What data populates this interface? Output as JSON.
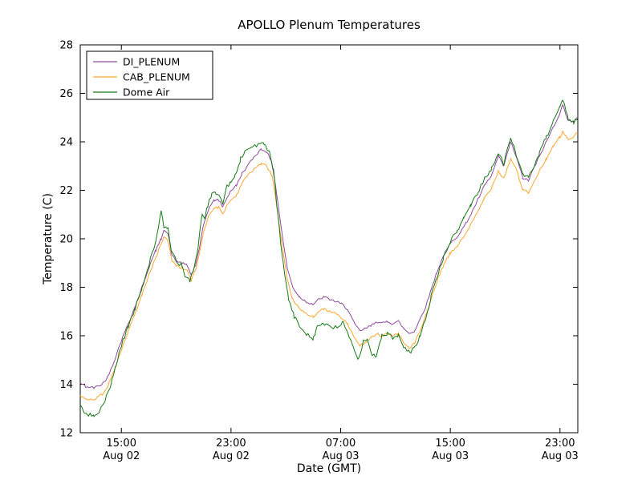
{
  "chart_data": {
    "type": "line",
    "title": "APOLLO Plenum Temperatures",
    "xlabel": "Date (GMT)",
    "ylabel": "Temperature (C)",
    "ylim": [
      12,
      28
    ],
    "yticks": [
      12,
      14,
      16,
      18,
      20,
      22,
      24,
      26,
      28
    ],
    "xlim_hours": [
      12,
      48.3
    ],
    "xticks": [
      {
        "hour": 15,
        "time": "15:00",
        "date": "Aug 02"
      },
      {
        "hour": 23,
        "time": "23:00",
        "date": "Aug 02"
      },
      {
        "hour": 31,
        "time": "07:00",
        "date": "Aug 03"
      },
      {
        "hour": 39,
        "time": "15:00",
        "date": "Aug 03"
      },
      {
        "hour": 47,
        "time": "23:00",
        "date": "Aug 03"
      }
    ],
    "grid": false,
    "legend_position": "upper left",
    "series": [
      {
        "name": "DI_PLENUM",
        "color": "#8f4a9e",
        "jitter": 0.05,
        "points": [
          [
            12,
            14.05
          ],
          [
            12.4,
            13.9
          ],
          [
            13,
            13.85
          ],
          [
            13.6,
            14.0
          ],
          [
            14,
            14.3
          ],
          [
            14.5,
            15.0
          ],
          [
            15,
            15.8
          ],
          [
            15.5,
            16.5
          ],
          [
            16,
            17.2
          ],
          [
            16.5,
            18.0
          ],
          [
            17,
            18.8
          ],
          [
            17.5,
            19.5
          ],
          [
            17.9,
            20.0
          ],
          [
            18.1,
            20.4
          ],
          [
            18.4,
            20.2
          ],
          [
            18.7,
            19.3
          ],
          [
            19,
            19.1
          ],
          [
            19.4,
            19.0
          ],
          [
            19.8,
            18.9
          ],
          [
            20.1,
            18.5
          ],
          [
            20.4,
            18.9
          ],
          [
            20.7,
            19.6
          ],
          [
            21,
            20.6
          ],
          [
            21.4,
            21.3
          ],
          [
            21.8,
            21.6
          ],
          [
            22.1,
            21.6
          ],
          [
            22.4,
            21.3
          ],
          [
            22.7,
            21.7
          ],
          [
            23,
            22.0
          ],
          [
            23.4,
            22.2
          ],
          [
            23.8,
            22.7
          ],
          [
            24.2,
            23.0
          ],
          [
            24.7,
            23.4
          ],
          [
            25.2,
            23.7
          ],
          [
            25.6,
            23.6
          ],
          [
            26,
            23.1
          ],
          [
            26.3,
            22.0
          ],
          [
            26.7,
            20.3
          ],
          [
            27.1,
            18.8
          ],
          [
            27.5,
            18.0
          ],
          [
            28,
            17.6
          ],
          [
            28.5,
            17.4
          ],
          [
            29,
            17.3
          ],
          [
            29.4,
            17.5
          ],
          [
            29.8,
            17.6
          ],
          [
            30.2,
            17.5
          ],
          [
            30.7,
            17.4
          ],
          [
            31.1,
            17.3
          ],
          [
            31.5,
            17.1
          ],
          [
            32,
            16.5
          ],
          [
            32.4,
            16.2
          ],
          [
            32.8,
            16.3
          ],
          [
            33.2,
            16.4
          ],
          [
            33.6,
            16.6
          ],
          [
            34,
            16.5
          ],
          [
            34.4,
            16.6
          ],
          [
            34.8,
            16.5
          ],
          [
            35.2,
            16.6
          ],
          [
            35.6,
            16.3
          ],
          [
            36,
            16.1
          ],
          [
            36.4,
            16.2
          ],
          [
            36.8,
            16.7
          ],
          [
            37.2,
            17.2
          ],
          [
            37.6,
            17.9
          ],
          [
            38,
            18.6
          ],
          [
            38.5,
            19.3
          ],
          [
            39,
            19.8
          ],
          [
            39.5,
            20.1
          ],
          [
            40,
            20.5
          ],
          [
            40.5,
            21.0
          ],
          [
            41,
            21.6
          ],
          [
            41.5,
            22.2
          ],
          [
            42,
            22.6
          ],
          [
            42.5,
            23.4
          ],
          [
            42.9,
            23.0
          ],
          [
            43.4,
            24.0
          ],
          [
            43.8,
            23.4
          ],
          [
            44.3,
            22.5
          ],
          [
            44.7,
            22.4
          ],
          [
            45,
            22.8
          ],
          [
            45.5,
            23.4
          ],
          [
            46,
            24.0
          ],
          [
            46.5,
            24.6
          ],
          [
            47,
            25.2
          ],
          [
            47.2,
            25.5
          ],
          [
            47.6,
            24.9
          ],
          [
            48,
            24.8
          ],
          [
            48.3,
            25.0
          ]
        ]
      },
      {
        "name": "CAB_PLENUM",
        "color": "#ffa632",
        "jitter": 0.05,
        "points": [
          [
            12,
            13.55
          ],
          [
            12.4,
            13.4
          ],
          [
            13,
            13.35
          ],
          [
            13.6,
            13.6
          ],
          [
            14,
            13.9
          ],
          [
            14.5,
            14.6
          ],
          [
            15,
            15.4
          ],
          [
            15.5,
            16.2
          ],
          [
            16,
            16.9
          ],
          [
            16.5,
            17.7
          ],
          [
            17,
            18.5
          ],
          [
            17.5,
            19.2
          ],
          [
            17.9,
            19.8
          ],
          [
            18.1,
            20.1
          ],
          [
            18.4,
            19.9
          ],
          [
            18.7,
            19.1
          ],
          [
            19,
            18.9
          ],
          [
            19.4,
            18.8
          ],
          [
            19.8,
            18.7
          ],
          [
            20.1,
            18.3
          ],
          [
            20.4,
            18.7
          ],
          [
            20.7,
            19.4
          ],
          [
            21,
            20.3
          ],
          [
            21.4,
            21.0
          ],
          [
            21.8,
            21.3
          ],
          [
            22.1,
            21.3
          ],
          [
            22.4,
            21.0
          ],
          [
            22.7,
            21.4
          ],
          [
            23,
            21.6
          ],
          [
            23.4,
            21.8
          ],
          [
            23.8,
            22.3
          ],
          [
            24.2,
            22.6
          ],
          [
            24.7,
            22.9
          ],
          [
            25.2,
            23.1
          ],
          [
            25.6,
            23.0
          ],
          [
            26,
            22.6
          ],
          [
            26.3,
            21.5
          ],
          [
            26.7,
            19.8
          ],
          [
            27.1,
            18.3
          ],
          [
            27.5,
            17.5
          ],
          [
            28,
            17.1
          ],
          [
            28.5,
            16.9
          ],
          [
            29,
            16.8
          ],
          [
            29.4,
            17.0
          ],
          [
            29.8,
            17.1
          ],
          [
            30.2,
            17.0
          ],
          [
            30.7,
            16.9
          ],
          [
            31.1,
            16.7
          ],
          [
            31.5,
            16.5
          ],
          [
            32,
            15.9
          ],
          [
            32.4,
            15.6
          ],
          [
            32.8,
            15.7
          ],
          [
            33.2,
            15.9
          ],
          [
            33.6,
            16.1
          ],
          [
            34,
            16.0
          ],
          [
            34.4,
            16.1
          ],
          [
            34.8,
            16.0
          ],
          [
            35.2,
            16.1
          ],
          [
            35.6,
            15.7
          ],
          [
            36,
            15.5
          ],
          [
            36.4,
            15.7
          ],
          [
            36.8,
            16.2
          ],
          [
            37.2,
            16.8
          ],
          [
            37.6,
            17.5
          ],
          [
            38,
            18.2
          ],
          [
            38.5,
            18.9
          ],
          [
            39,
            19.4
          ],
          [
            39.5,
            19.7
          ],
          [
            40,
            20.1
          ],
          [
            40.5,
            20.6
          ],
          [
            41,
            21.1
          ],
          [
            41.5,
            21.7
          ],
          [
            42,
            22.1
          ],
          [
            42.5,
            22.8
          ],
          [
            42.9,
            22.5
          ],
          [
            43.4,
            23.3
          ],
          [
            43.8,
            22.9
          ],
          [
            44.3,
            22.0
          ],
          [
            44.7,
            21.9
          ],
          [
            45,
            22.2
          ],
          [
            45.5,
            22.8
          ],
          [
            46,
            23.3
          ],
          [
            46.5,
            23.8
          ],
          [
            47,
            24.2
          ],
          [
            47.2,
            24.4
          ],
          [
            47.6,
            24.1
          ],
          [
            48,
            24.2
          ],
          [
            48.3,
            24.4
          ]
        ]
      },
      {
        "name": "Dome Air",
        "color": "#177a17",
        "jitter": 0.09,
        "points": [
          [
            12,
            13.2
          ],
          [
            12.3,
            12.8
          ],
          [
            12.6,
            12.7
          ],
          [
            13,
            12.75
          ],
          [
            13.4,
            12.9
          ],
          [
            13.8,
            13.3
          ],
          [
            14.2,
            13.9
          ],
          [
            14.6,
            14.8
          ],
          [
            15,
            15.6
          ],
          [
            15.5,
            16.4
          ],
          [
            16,
            17.1
          ],
          [
            16.5,
            18.0
          ],
          [
            17,
            18.9
          ],
          [
            17.4,
            19.7
          ],
          [
            17.7,
            20.4
          ],
          [
            17.9,
            21.1
          ],
          [
            18.1,
            20.5
          ],
          [
            18.4,
            20.4
          ],
          [
            18.7,
            19.4
          ],
          [
            19,
            19.1
          ],
          [
            19.4,
            18.9
          ],
          [
            19.7,
            18.4
          ],
          [
            20,
            18.3
          ],
          [
            20.3,
            18.8
          ],
          [
            20.6,
            19.7
          ],
          [
            20.9,
            21.0
          ],
          [
            21.1,
            20.9
          ],
          [
            21.3,
            21.4
          ],
          [
            21.6,
            21.8
          ],
          [
            21.9,
            21.9
          ],
          [
            22.2,
            21.8
          ],
          [
            22.4,
            21.4
          ],
          [
            22.7,
            22.2
          ],
          [
            23,
            22.3
          ],
          [
            23.3,
            22.6
          ],
          [
            23.7,
            23.3
          ],
          [
            24,
            23.6
          ],
          [
            24.5,
            23.8
          ],
          [
            25,
            23.9
          ],
          [
            25.4,
            23.9
          ],
          [
            25.8,
            23.6
          ],
          [
            26.1,
            22.8
          ],
          [
            26.4,
            21.0
          ],
          [
            26.8,
            19.0
          ],
          [
            27.2,
            17.5
          ],
          [
            27.6,
            16.8
          ],
          [
            28,
            16.4
          ],
          [
            28.5,
            16.1
          ],
          [
            29,
            15.9
          ],
          [
            29.3,
            16.4
          ],
          [
            29.7,
            16.5
          ],
          [
            30.1,
            16.4
          ],
          [
            30.5,
            16.3
          ],
          [
            30.9,
            16.4
          ],
          [
            31.2,
            16.6
          ],
          [
            31.5,
            16.1
          ],
          [
            31.9,
            15.5
          ],
          [
            32.3,
            15.0
          ],
          [
            32.7,
            15.9
          ],
          [
            33,
            15.8
          ],
          [
            33.3,
            15.2
          ],
          [
            33.6,
            15.1
          ],
          [
            34,
            16.0
          ],
          [
            34.4,
            16.1
          ],
          [
            34.8,
            15.9
          ],
          [
            35.2,
            16.0
          ],
          [
            35.6,
            15.5
          ],
          [
            36,
            15.3
          ],
          [
            36.4,
            15.5
          ],
          [
            36.8,
            16.0
          ],
          [
            37.2,
            16.7
          ],
          [
            37.6,
            17.6
          ],
          [
            38,
            18.4
          ],
          [
            38.5,
            19.2
          ],
          [
            39,
            19.9
          ],
          [
            39.5,
            20.3
          ],
          [
            40,
            20.9
          ],
          [
            40.5,
            21.4
          ],
          [
            41,
            21.9
          ],
          [
            41.5,
            22.5
          ],
          [
            42,
            22.9
          ],
          [
            42.5,
            23.5
          ],
          [
            42.9,
            23.1
          ],
          [
            43.4,
            24.2
          ],
          [
            43.8,
            23.5
          ],
          [
            44.3,
            22.6
          ],
          [
            44.7,
            22.5
          ],
          [
            45,
            22.9
          ],
          [
            45.5,
            23.5
          ],
          [
            46,
            24.2
          ],
          [
            46.5,
            24.8
          ],
          [
            47,
            25.4
          ],
          [
            47.2,
            25.7
          ],
          [
            47.6,
            25.0
          ],
          [
            48,
            24.8
          ],
          [
            48.3,
            25.0
          ]
        ]
      }
    ]
  }
}
